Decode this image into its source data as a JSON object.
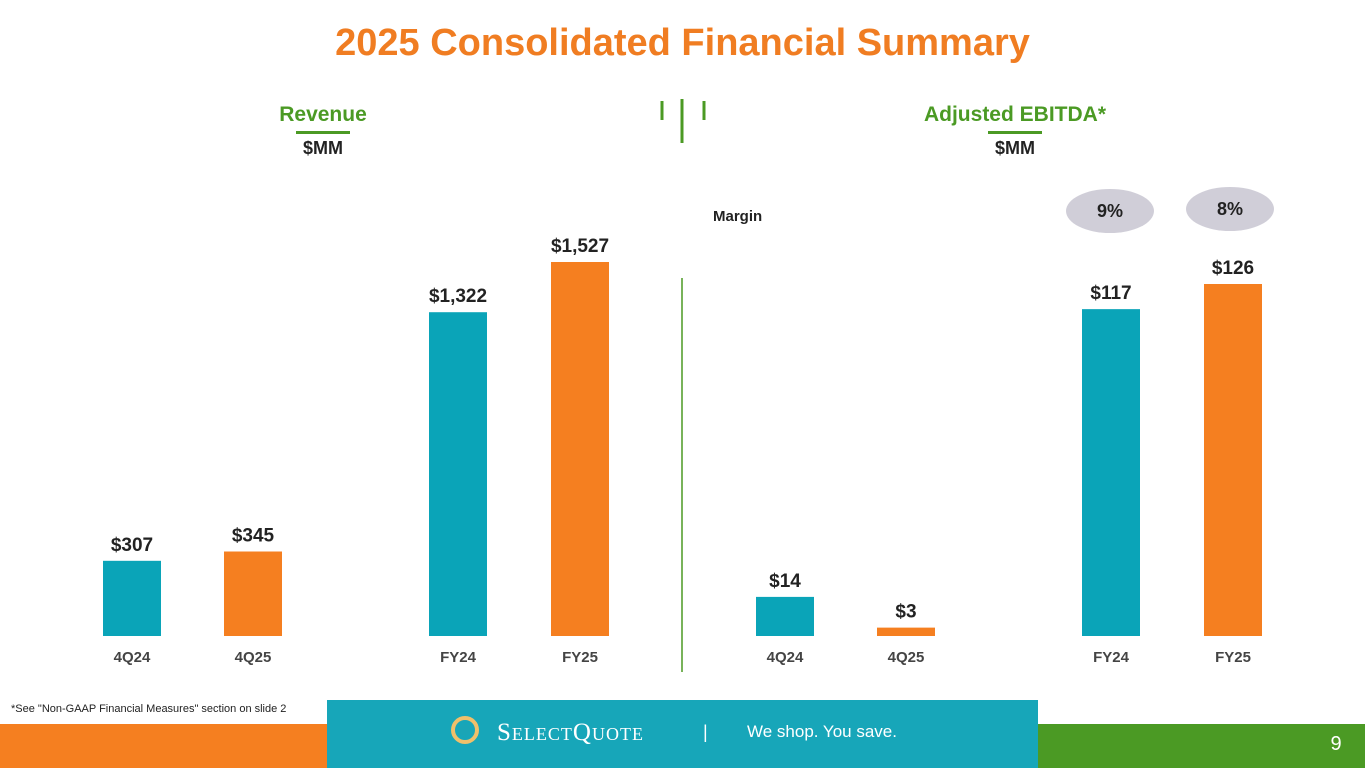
{
  "title": "2025 Consolidated Financial Summary",
  "colors": {
    "accent_orange": "#f07d22",
    "green": "#4b9a24",
    "teal": "#0aa4b8",
    "bar_orange": "#f57f20",
    "pill": "#d0ced8",
    "footer_teal": "#17a6b9"
  },
  "revenue": {
    "title": "Revenue",
    "unit": "$MM"
  },
  "ebitda": {
    "title": "Adjusted EBITDA*",
    "unit": "$MM"
  },
  "margin_label": "Margin",
  "margins": [
    "9%",
    "8%"
  ],
  "chart_data": [
    {
      "type": "bar",
      "title": "Revenue",
      "ylabel": "$MM",
      "categories": [
        "4Q24",
        "4Q25",
        "FY24",
        "FY25"
      ],
      "values": [
        307,
        345,
        1322,
        1527
      ],
      "data_labels": [
        "$307",
        "$345",
        "$1,322",
        "$1,527"
      ],
      "bar_colors": [
        "#0aa4b8",
        "#f57f20",
        "#0aa4b8",
        "#f57f20"
      ]
    },
    {
      "type": "bar",
      "title": "Adjusted EBITDA*",
      "ylabel": "$MM",
      "categories": [
        "4Q24",
        "4Q25",
        "FY24",
        "FY25"
      ],
      "values": [
        14,
        3,
        117,
        126
      ],
      "data_labels": [
        "$14",
        "$3",
        "$117",
        "$126"
      ],
      "bar_colors": [
        "#0aa4b8",
        "#f57f20",
        "#0aa4b8",
        "#f57f20"
      ]
    }
  ],
  "footnote": "*See \"Non-GAAP Financial Measures\" section on slide 2",
  "footer": {
    "logo_text": "SelectQuote",
    "separator": "|",
    "tagline": "We shop. You save.",
    "page_number": "9",
    "logo_icon": "selectquote-logo-icon"
  }
}
